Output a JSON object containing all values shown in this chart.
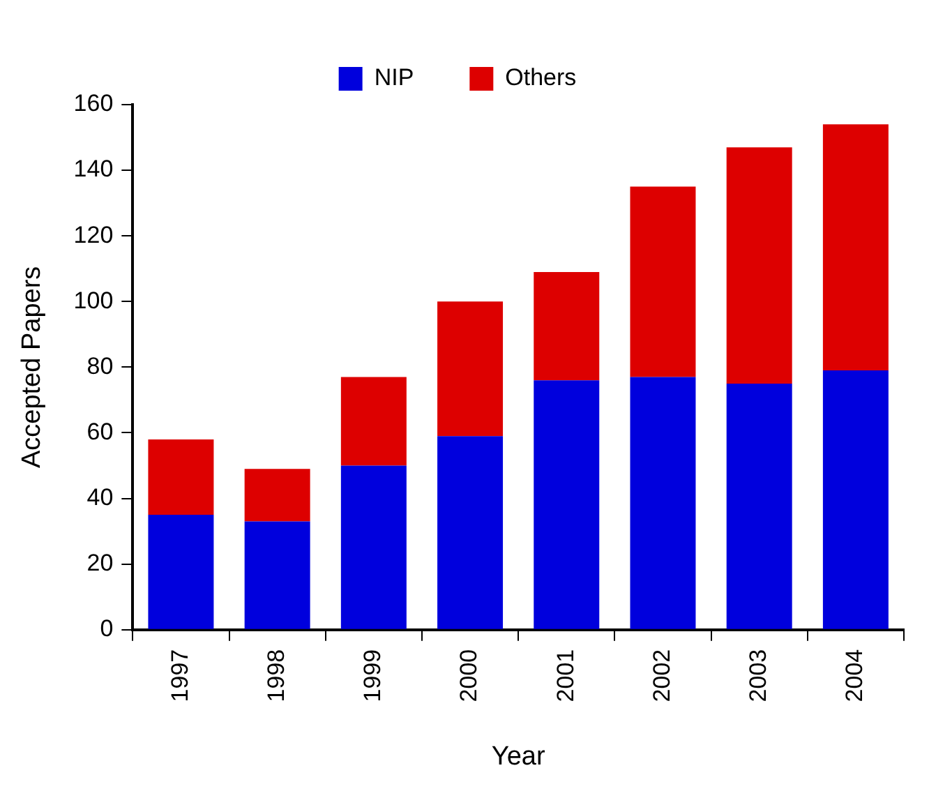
{
  "chart_data": {
    "type": "bar",
    "xlabel": "Year",
    "ylabel": "Accepted Papers",
    "categories": [
      "1997",
      "1998",
      "1999",
      "2000",
      "2001",
      "2002",
      "2003",
      "2004"
    ],
    "stacked": true,
    "series": [
      {
        "name": "NIP",
        "color": "#0000dd",
        "values": [
          35,
          33,
          50,
          59,
          76,
          77,
          75,
          79
        ]
      },
      {
        "name": "Others",
        "color": "#dd0000",
        "values": [
          23,
          16,
          27,
          41,
          33,
          58,
          72,
          75
        ]
      }
    ],
    "ylim": [
      0,
      160
    ],
    "yticks": [
      0,
      20,
      40,
      60,
      80,
      100,
      120,
      140,
      160
    ],
    "grid": false,
    "legend": "top"
  }
}
